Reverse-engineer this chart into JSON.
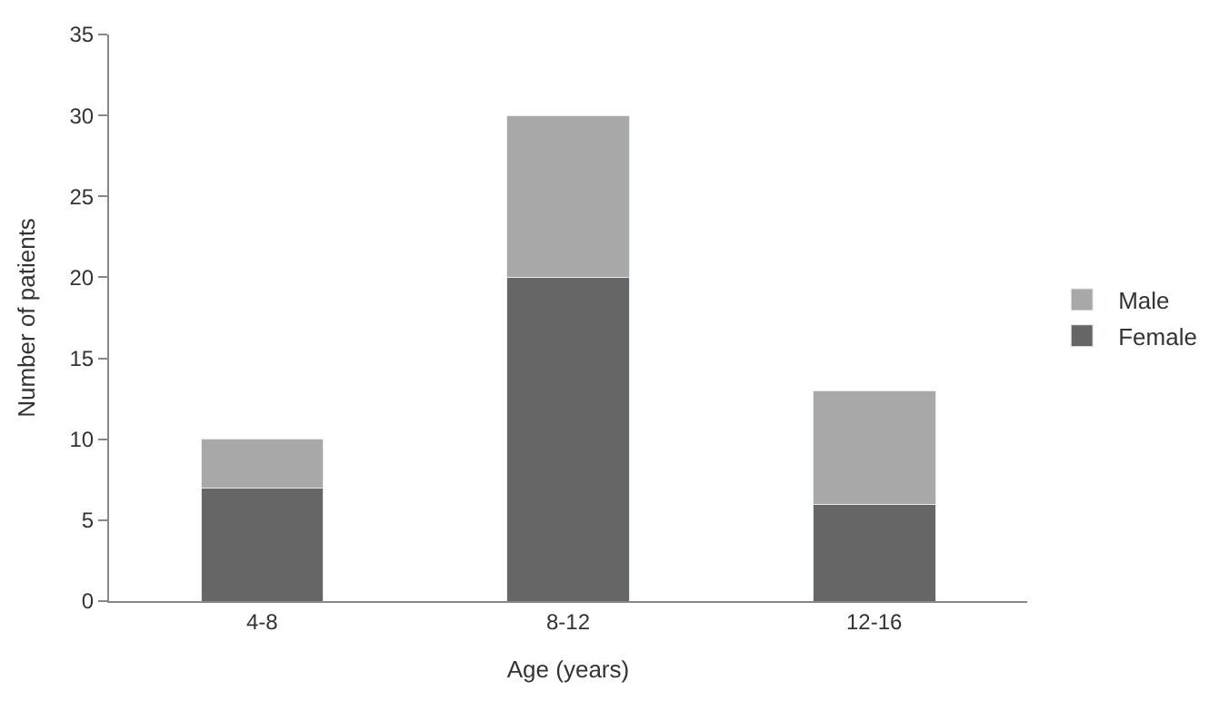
{
  "chart_data": {
    "type": "bar",
    "stacked": true,
    "xlabel": "Age (years)",
    "ylabel": "Number of patients",
    "categories": [
      "4-8",
      "8-12",
      "12-16"
    ],
    "series": [
      {
        "name": "Female",
        "color": "#666666",
        "values": [
          7,
          20,
          6
        ]
      },
      {
        "name": "Male",
        "color": "#a8a8a8",
        "values": [
          3,
          10,
          7
        ]
      }
    ],
    "ylim": [
      0,
      35
    ],
    "yticks": [
      0,
      5,
      10,
      15,
      20,
      25,
      30,
      35
    ],
    "legend": "right"
  }
}
